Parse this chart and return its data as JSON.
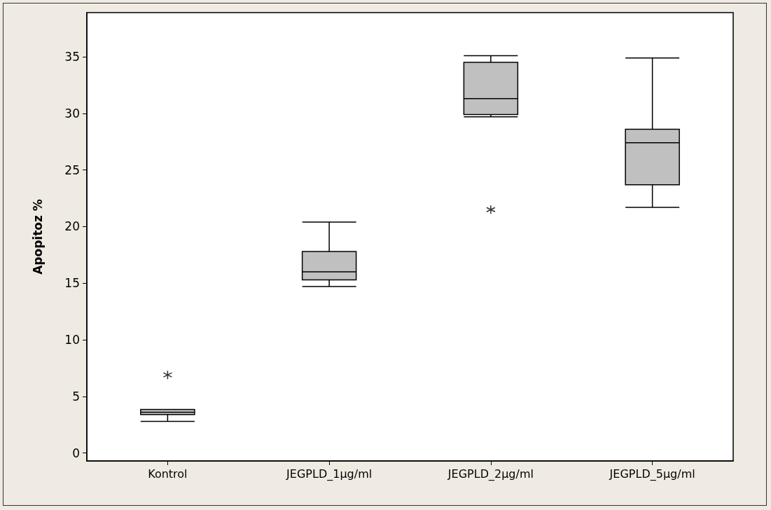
{
  "chart_data": {
    "type": "box",
    "ylabel": "Apopitoz %",
    "categories": [
      "Kontrol",
      "JEGPLD_1µg/ml",
      "JEGPLD_2µg/ml",
      "JEGPLD_5µg/ml"
    ],
    "color": "#c0c0c0",
    "boxes": [
      {
        "low": 2.8,
        "q1": 3.4,
        "median": 3.6,
        "q3": 3.85,
        "high": 3.85,
        "outliers": [
          6.9
        ]
      },
      {
        "low": 14.7,
        "q1": 15.3,
        "median": 16.0,
        "q3": 17.8,
        "high": 20.4
      },
      {
        "low": 29.7,
        "q1": 29.9,
        "median": 31.3,
        "q3": 34.5,
        "high": 35.1,
        "outliers": [
          21.5
        ]
      },
      {
        "low": 21.7,
        "q1": 23.7,
        "median": 27.4,
        "q3": 28.6,
        "high": 34.9
      }
    ],
    "ylim": [
      -0.7,
      38.9
    ],
    "yticks": [
      0,
      5,
      10,
      15,
      20,
      25,
      30,
      35
    ]
  }
}
